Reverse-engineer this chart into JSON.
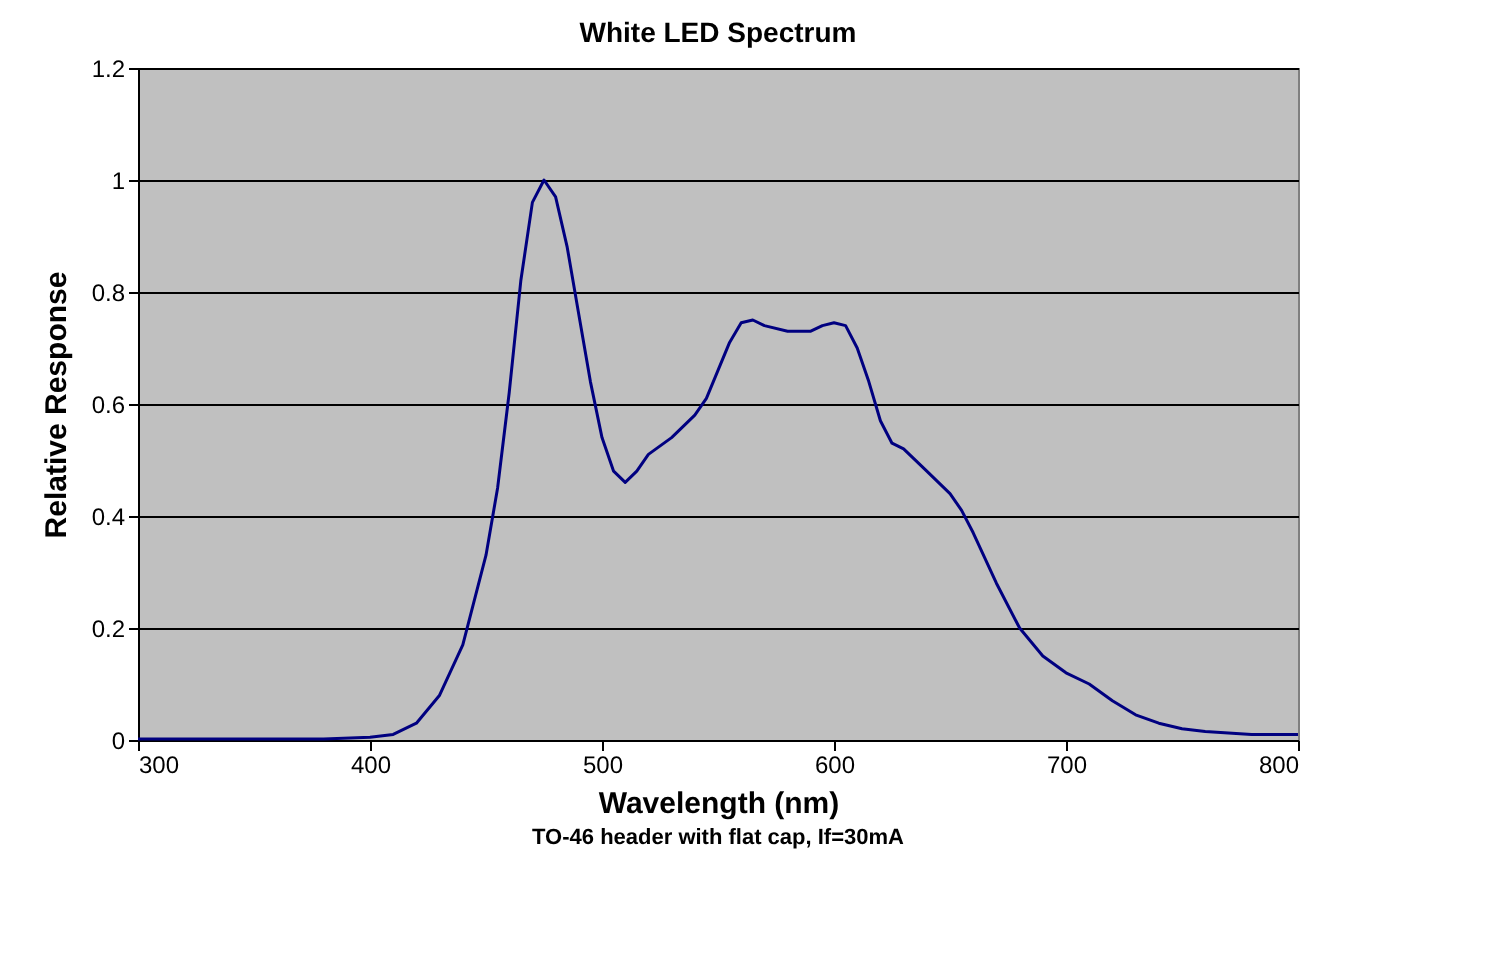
{
  "chart_data": {
    "type": "line",
    "title": "White LED Spectrum",
    "xlabel": "Wavelength (nm)",
    "ylabel": "Relative Response",
    "annotations": [
      "TO-46 header with flat cap, If=30mA"
    ],
    "x": [
      300,
      320,
      340,
      360,
      380,
      400,
      410,
      420,
      430,
      440,
      450,
      455,
      460,
      465,
      470,
      475,
      480,
      485,
      490,
      495,
      500,
      505,
      510,
      515,
      520,
      530,
      540,
      545,
      550,
      555,
      560,
      565,
      570,
      580,
      590,
      595,
      600,
      605,
      610,
      615,
      620,
      625,
      630,
      640,
      650,
      655,
      660,
      670,
      680,
      690,
      700,
      710,
      720,
      730,
      740,
      750,
      760,
      780,
      800
    ],
    "series": [
      {
        "color": "#000080",
        "values": [
          0.002,
          0.002,
          0.002,
          0.002,
          0.002,
          0.005,
          0.01,
          0.03,
          0.08,
          0.17,
          0.33,
          0.45,
          0.62,
          0.82,
          0.96,
          1.0,
          0.97,
          0.88,
          0.76,
          0.64,
          0.54,
          0.48,
          0.46,
          0.48,
          0.51,
          0.54,
          0.58,
          0.61,
          0.66,
          0.71,
          0.745,
          0.75,
          0.74,
          0.73,
          0.73,
          0.74,
          0.745,
          0.74,
          0.7,
          0.64,
          0.57,
          0.53,
          0.52,
          0.48,
          0.44,
          0.41,
          0.37,
          0.28,
          0.2,
          0.15,
          0.12,
          0.1,
          0.07,
          0.045,
          0.03,
          0.02,
          0.015,
          0.01,
          0.01
        ]
      }
    ],
    "xlim": [
      300,
      800
    ],
    "xticks": [
      300,
      400,
      500,
      600,
      700,
      800
    ],
    "ylim": [
      0,
      1.2
    ],
    "yticks": [
      0,
      0.2,
      0.4,
      0.6,
      0.8,
      1,
      1.2
    ],
    "grid": "y",
    "marker": "none",
    "line_style": "solid"
  }
}
